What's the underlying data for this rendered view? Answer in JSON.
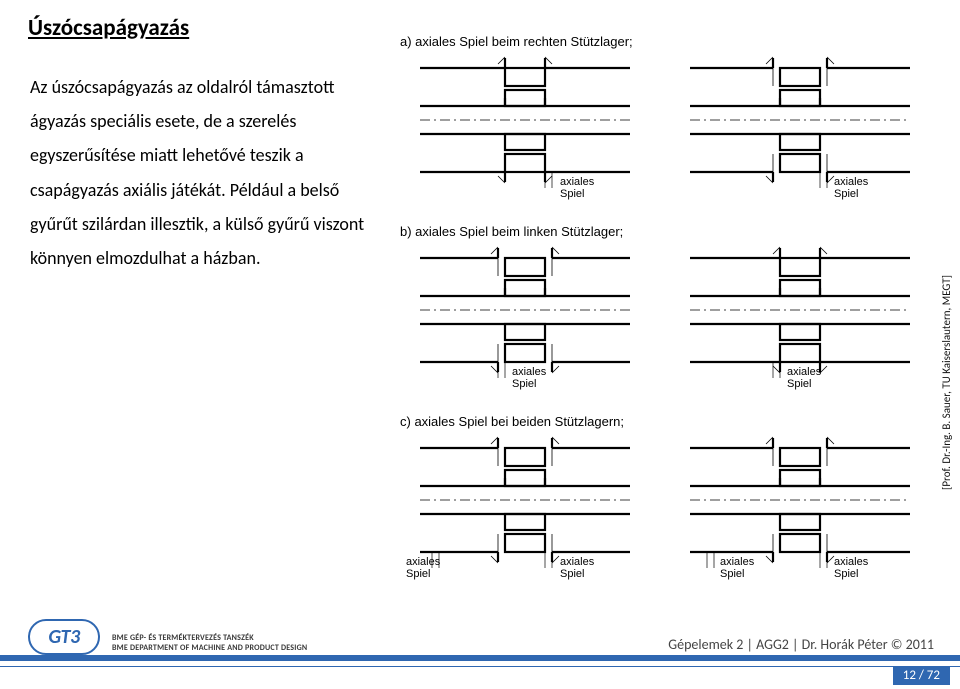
{
  "title": "Úszócsapágyazás",
  "paragraph": "Az úszócsapágyazás az oldalról támasztott ágyazás speciális esete, de a szerelés egyszerűsítése miatt lehetővé teszik a csapágyazás axiális játékát. Például a belső gyűrűt szilárdan illesztik, a külső gyűrű viszont könnyen elmozdulhat a házban.",
  "captions": {
    "a": "a)  axiales Spiel beim rechten Stützlager;",
    "b": "b)  axiales Spiel beim linken Stützlager;",
    "c": "c)  axiales Spiel bei beiden Stützlagern;"
  },
  "label": "axiales\nSpiel",
  "credit": "[Prof. Dr.-Ing.  B. Sauer, TU Kaiserslautern, MEGT]",
  "footer": {
    "logo": "GT3",
    "dept1": "BME GÉP- ÉS TERMÉKTERVEZÉS TANSZÉK",
    "dept2": "BME DEPARTMENT OF MACHINE AND PRODUCT DESIGN",
    "line": "Gépelemek 2 | AGG2 | Dr. Horák Péter © 2011",
    "page": "12 / 72"
  },
  "colors": {
    "stroke": "#000000",
    "thin": "#000000",
    "brand": "#2f67b1",
    "hatch": "#000000"
  },
  "diagram": {
    "line_w_thick": 2.2,
    "line_w_thin": 0.9,
    "dash": "4 3"
  }
}
